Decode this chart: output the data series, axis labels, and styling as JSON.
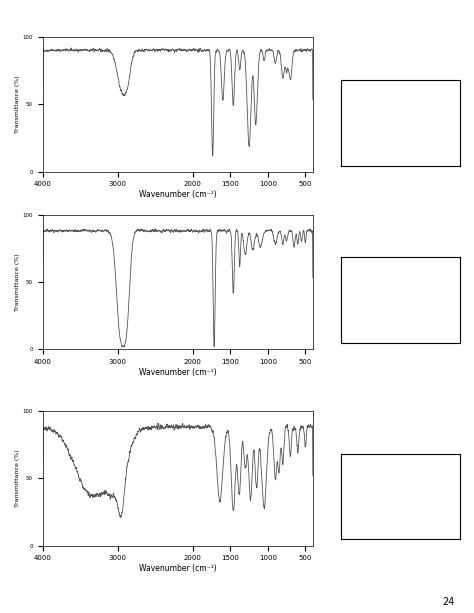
{
  "background_color": "#ffffff",
  "xlabel": "Wavenumber (cm⁻¹)",
  "ylabel": "Transmittance (%)",
  "xlim": [
    4000,
    400
  ],
  "ylim": [
    0,
    100
  ],
  "xticks": [
    4000,
    3000,
    2000,
    1500,
    1000,
    500
  ],
  "xtick_labels": [
    "4000",
    "3000",
    "2000",
    "1500",
    "1000",
    "500"
  ],
  "page_number": "24",
  "line_color": "#555555",
  "box_color": "#000000"
}
